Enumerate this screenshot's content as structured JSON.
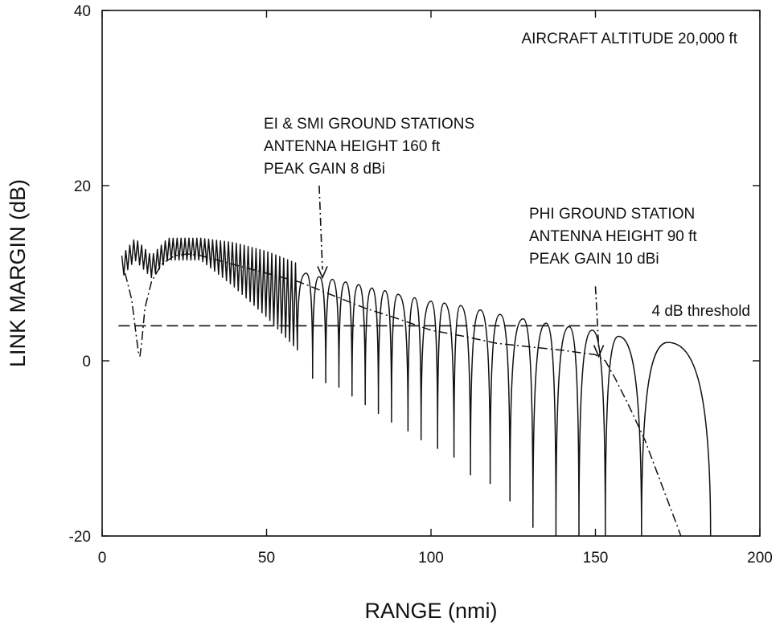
{
  "chart_data": {
    "type": "line",
    "xlabel": "RANGE (nmi)",
    "ylabel": "LINK MARGIN (dB)",
    "xlim": [
      0,
      200
    ],
    "ylim": [
      -20,
      40
    ],
    "x_ticks": [
      0,
      50,
      100,
      150,
      200
    ],
    "y_ticks": [
      -20,
      0,
      20,
      40
    ],
    "grid": false,
    "series": [
      {
        "style": "solid",
        "description_points_x": [
          6,
          10,
          15,
          20,
          25,
          30,
          40,
          50,
          60,
          70,
          80,
          90,
          100,
          110,
          120,
          130,
          140,
          150,
          160,
          170,
          180,
          185
        ],
        "peak_envelope_y": [
          12,
          14,
          12,
          14,
          14,
          14,
          13.5,
          12.5,
          11,
          9.5,
          8.5,
          7.5,
          6.5,
          6,
          5,
          4.2,
          3.8,
          3.5,
          3,
          2.2,
          0,
          -20
        ],
        "lobe_peaks_x": [
          62,
          66,
          70,
          74,
          78,
          82,
          86,
          90,
          95,
          100,
          104,
          109,
          115,
          121,
          128,
          135,
          142,
          149,
          157,
          172
        ],
        "lobe_peaks_y": [
          10,
          9.6,
          9.3,
          9,
          8.7,
          8.3,
          8,
          7.6,
          7.2,
          6.8,
          6.6,
          6.3,
          5.8,
          5.3,
          4.8,
          4.3,
          3.9,
          3.5,
          2.8,
          2.1
        ],
        "nulls_x": [
          64,
          68,
          72,
          76,
          80,
          84,
          88,
          93,
          97,
          102,
          107,
          112,
          118,
          124,
          131,
          138,
          145,
          153,
          164,
          185
        ],
        "nulls_y": [
          -2,
          -2.5,
          -3,
          -4,
          -5,
          -6,
          -7,
          -8,
          -9,
          -10,
          -11,
          -13,
          -14,
          -16,
          -19,
          -20,
          -20,
          -20,
          -20,
          -20
        ]
      },
      {
        "style": "dash-dot",
        "x": [
          7,
          9,
          10,
          11,
          11.5,
          12,
          13,
          15,
          18,
          22,
          26,
          30,
          40,
          50,
          60,
          70,
          80,
          90,
          100,
          110,
          120,
          130,
          140,
          150,
          153,
          156,
          160,
          165,
          170,
          174,
          176
        ],
        "y": [
          10,
          7,
          4,
          1,
          0.5,
          2,
          6,
          9,
          11,
          12,
          12.2,
          12,
          11,
          10,
          9,
          7.5,
          6,
          4.8,
          3.5,
          2.8,
          2,
          1.6,
          1.2,
          0.7,
          0,
          -2,
          -5,
          -9,
          -14,
          -18,
          -20
        ]
      },
      {
        "style": "dashed",
        "x": [
          5,
          200
        ],
        "y": [
          4,
          4
        ]
      }
    ],
    "annotations": {
      "altitude": "AIRCRAFT ALTITUDE 20,000 ft",
      "ei_smi": [
        "EI & SMI GROUND STATIONS",
        "ANTENNA HEIGHT 160 ft",
        "PEAK GAIN 8 dBi"
      ],
      "phi": [
        "PHI GROUND STATION",
        "ANTENNA HEIGHT 90 ft",
        "PEAK GAIN 10 dBi"
      ],
      "threshold": "4 dB threshold"
    },
    "arrows": [
      {
        "from": [
          66,
          20
        ],
        "to": [
          67,
          9.5
        ]
      },
      {
        "from": [
          150,
          8.5
        ],
        "to": [
          151,
          0.5
        ]
      }
    ]
  }
}
